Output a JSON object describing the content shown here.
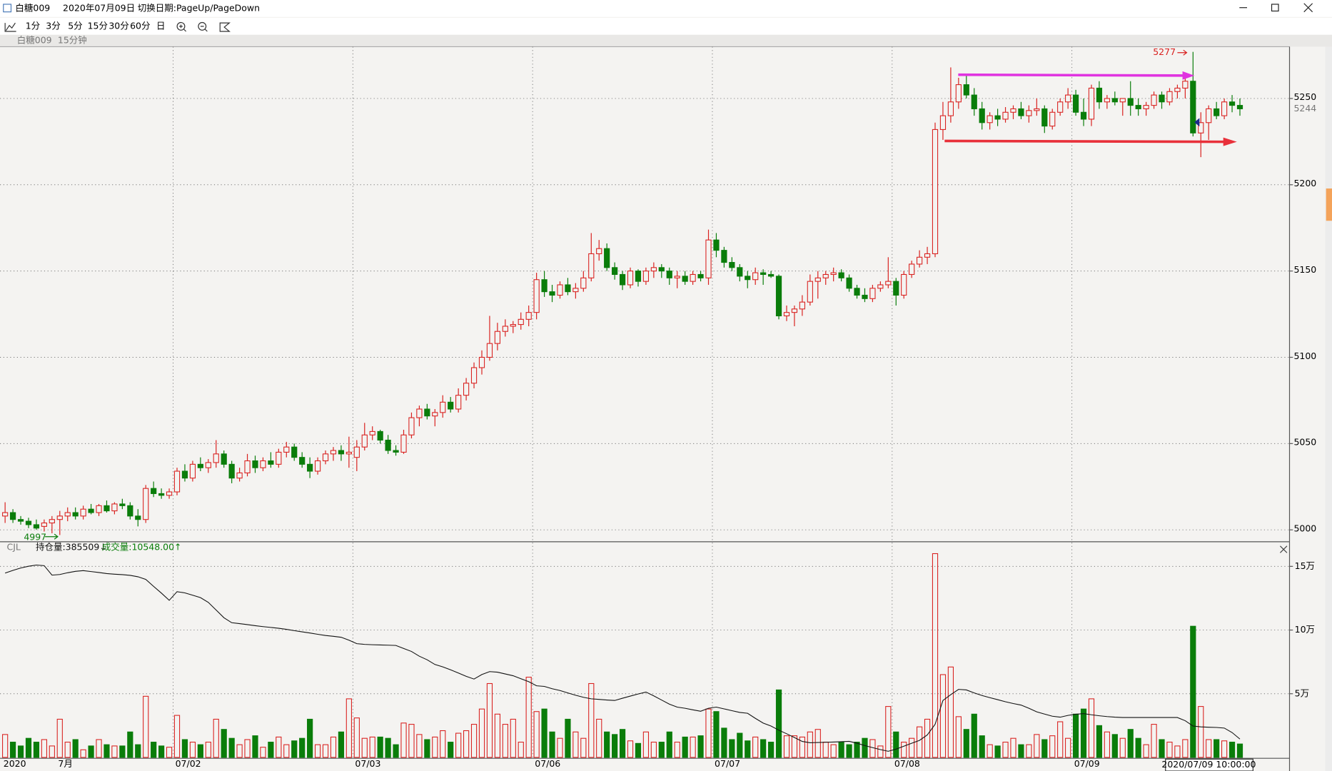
{
  "window": {
    "title": "白糖009",
    "date": "2020年07月09日",
    "hint": "切换日期:PageUp/PageDown",
    "periods": [
      "1分",
      "3分",
      "5分",
      "15分",
      "30分",
      "60分",
      "日"
    ],
    "instrument": "白糖009",
    "period": "15分钟"
  },
  "chart_data": {
    "type": "candlestick",
    "up_color": "#d9211f",
    "down_color": "#0a7d0a",
    "oi_color": "#111111",
    "ylim": [
      4993.6,
      5280
    ],
    "yticks": [
      5000,
      5050,
      5100,
      5150,
      5200,
      5250
    ],
    "grid": true,
    "last_price": 5244,
    "annotations": {
      "high": 5277,
      "low": 4997
    },
    "cursor_time": "2020/07/09 10:00:00",
    "indicator": "CJL",
    "indicator_labels": [
      "持仓量:385509↓",
      "成交量:10548.00↑"
    ],
    "volume_ylim": [
      0,
      162000
    ],
    "volume_ticks": [
      {
        "value": 50000,
        "label": "5万"
      },
      {
        "value": 100000,
        "label": "10万"
      },
      {
        "value": 150000,
        "label": "15万"
      }
    ],
    "y2lim": [
      370000,
      540000
    ],
    "categories": [
      "2020",
      null,
      null,
      null,
      null,
      null,
      null,
      "7月",
      null,
      null,
      null,
      null,
      null,
      null,
      null,
      null,
      null,
      null,
      null,
      null,
      null,
      null,
      "07/02",
      null,
      null,
      null,
      null,
      null,
      null,
      null,
      null,
      null,
      null,
      null,
      null,
      null,
      null,
      null,
      null,
      null,
      null,
      null,
      null,
      null,
      null,
      "07/03",
      null,
      null,
      null,
      null,
      null,
      null,
      null,
      null,
      null,
      null,
      null,
      null,
      null,
      null,
      null,
      null,
      null,
      null,
      null,
      null,
      null,
      null,
      "07/06",
      null,
      null,
      null,
      null,
      null,
      null,
      null,
      null,
      null,
      null,
      null,
      null,
      null,
      null,
      null,
      null,
      null,
      null,
      null,
      null,
      null,
      null,
      "07/07",
      null,
      null,
      null,
      null,
      null,
      null,
      null,
      null,
      null,
      null,
      null,
      null,
      null,
      null,
      null,
      null,
      null,
      null,
      null,
      null,
      null,
      null,
      "07/08",
      null,
      null,
      null,
      null,
      null,
      null,
      null,
      null,
      null,
      null,
      null,
      null,
      null,
      null,
      null,
      null,
      null,
      null,
      null,
      null,
      null,
      null,
      "07/09",
      null,
      null,
      null,
      null,
      null,
      null,
      null,
      null,
      null,
      null,
      null,
      null,
      null,
      null,
      null,
      null,
      null,
      null,
      null,
      null,
      null
    ],
    "candles": [
      [
        5008,
        5016,
        5004,
        5010
      ],
      [
        5010,
        5012,
        5004,
        5006
      ],
      [
        5006,
        5008,
        5003,
        5005
      ],
      [
        5005,
        5007,
        5001,
        5003
      ],
      [
        5003,
        5006,
        5000,
        5001
      ],
      [
        5002,
        5006,
        4999,
        5004
      ],
      [
        5004,
        5008,
        4998,
        5006
      ],
      [
        5006,
        5011,
        4997,
        5008
      ],
      [
        5008,
        5013,
        5005,
        5010
      ],
      [
        5010,
        5013,
        5006,
        5008
      ],
      [
        5008,
        5014,
        5006,
        5012
      ],
      [
        5012,
        5015,
        5009,
        5010
      ],
      [
        5010,
        5015,
        5008,
        5014
      ],
      [
        5014,
        5017,
        5010,
        5011
      ],
      [
        5011,
        5016,
        5009,
        5015
      ],
      [
        5015,
        5018,
        5012,
        5014
      ],
      [
        5014,
        5016,
        5006,
        5008
      ],
      [
        5008,
        5012,
        5002,
        5006
      ],
      [
        5006,
        5026,
        5004,
        5024
      ],
      [
        5024,
        5028,
        5019,
        5021
      ],
      [
        5021,
        5024,
        5018,
        5020
      ],
      [
        5020,
        5024,
        5018,
        5022
      ],
      [
        5022,
        5036,
        5020,
        5034
      ],
      [
        5034,
        5038,
        5028,
        5030
      ],
      [
        5030,
        5040,
        5028,
        5038
      ],
      [
        5038,
        5042,
        5034,
        5036
      ],
      [
        5036,
        5041,
        5033,
        5039
      ],
      [
        5039,
        5052,
        5036,
        5044
      ],
      [
        5044,
        5046,
        5036,
        5038
      ],
      [
        5038,
        5040,
        5027,
        5030
      ],
      [
        5030,
        5036,
        5028,
        5033
      ],
      [
        5033,
        5044,
        5031,
        5040
      ],
      [
        5040,
        5043,
        5033,
        5036
      ],
      [
        5036,
        5042,
        5034,
        5040
      ],
      [
        5040,
        5045,
        5036,
        5038
      ],
      [
        5038,
        5047,
        5036,
        5045
      ],
      [
        5045,
        5051,
        5042,
        5048
      ],
      [
        5048,
        5050,
        5040,
        5042
      ],
      [
        5042,
        5045,
        5036,
        5038
      ],
      [
        5038,
        5042,
        5030,
        5034
      ],
      [
        5034,
        5042,
        5032,
        5040
      ],
      [
        5040,
        5046,
        5038,
        5044
      ],
      [
        5044,
        5048,
        5040,
        5046
      ],
      [
        5046,
        5049,
        5040,
        5044
      ],
      [
        5044,
        5054,
        5036,
        5045
      ],
      [
        5042,
        5052,
        5034,
        5048
      ],
      [
        5048,
        5062,
        5046,
        5055
      ],
      [
        5055,
        5060,
        5052,
        5057
      ],
      [
        5057,
        5058,
        5050,
        5052
      ],
      [
        5052,
        5055,
        5044,
        5046
      ],
      [
        5046,
        5049,
        5043,
        5045
      ],
      [
        5045,
        5058,
        5044,
        5055
      ],
      [
        5055,
        5068,
        5053,
        5065
      ],
      [
        5065,
        5072,
        5060,
        5070
      ],
      [
        5070,
        5073,
        5064,
        5066
      ],
      [
        5066,
        5070,
        5060,
        5068
      ],
      [
        5068,
        5078,
        5065,
        5074
      ],
      [
        5074,
        5077,
        5068,
        5070
      ],
      [
        5070,
        5082,
        5068,
        5078
      ],
      [
        5078,
        5088,
        5075,
        5085
      ],
      [
        5085,
        5097,
        5082,
        5094
      ],
      [
        5094,
        5104,
        5090,
        5100
      ],
      [
        5100,
        5124,
        5098,
        5108
      ],
      [
        5108,
        5120,
        5104,
        5115
      ],
      [
        5115,
        5122,
        5112,
        5118
      ],
      [
        5118,
        5121,
        5114,
        5119
      ],
      [
        5119,
        5126,
        5116,
        5122
      ],
      [
        5122,
        5130,
        5118,
        5126
      ],
      [
        5126,
        5149,
        5122,
        5145
      ],
      [
        5145,
        5150,
        5135,
        5138
      ],
      [
        5138,
        5142,
        5132,
        5136
      ],
      [
        5136,
        5144,
        5134,
        5142
      ],
      [
        5142,
        5146,
        5136,
        5138
      ],
      [
        5138,
        5143,
        5134,
        5140
      ],
      [
        5140,
        5150,
        5138,
        5146
      ],
      [
        5146,
        5172,
        5144,
        5160
      ],
      [
        5160,
        5168,
        5156,
        5163
      ],
      [
        5163,
        5166,
        5150,
        5152
      ],
      [
        5152,
        5155,
        5145,
        5148
      ],
      [
        5148,
        5150,
        5139,
        5142
      ],
      [
        5142,
        5152,
        5140,
        5150
      ],
      [
        5150,
        5151,
        5141,
        5144
      ],
      [
        5144,
        5152,
        5142,
        5150
      ],
      [
        5150,
        5155,
        5146,
        5152
      ],
      [
        5152,
        5154,
        5146,
        5150
      ],
      [
        5150,
        5152,
        5142,
        5146
      ],
      [
        5146,
        5150,
        5140,
        5147
      ],
      [
        5147,
        5150,
        5142,
        5144
      ],
      [
        5144,
        5150,
        5142,
        5148
      ],
      [
        5148,
        5150,
        5144,
        5146
      ],
      [
        5146,
        5174,
        5142,
        5168
      ],
      [
        5168,
        5172,
        5158,
        5162
      ],
      [
        5162,
        5164,
        5152,
        5155
      ],
      [
        5155,
        5158,
        5150,
        5152
      ],
      [
        5152,
        5154,
        5144,
        5147
      ],
      [
        5147,
        5150,
        5140,
        5145
      ],
      [
        5145,
        5152,
        5142,
        5149
      ],
      [
        5149,
        5151,
        5142,
        5148
      ],
      [
        5148,
        5150,
        5146,
        5147
      ],
      [
        5147,
        5148,
        5122,
        5124
      ],
      [
        5124,
        5130,
        5121,
        5126
      ],
      [
        5126,
        5130,
        5118,
        5128
      ],
      [
        5128,
        5136,
        5124,
        5132
      ],
      [
        5132,
        5148,
        5130,
        5144
      ],
      [
        5144,
        5150,
        5134,
        5146
      ],
      [
        5146,
        5150,
        5142,
        5148
      ],
      [
        5148,
        5152,
        5144,
        5149
      ],
      [
        5149,
        5151,
        5144,
        5146
      ],
      [
        5146,
        5148,
        5138,
        5140
      ],
      [
        5140,
        5142,
        5134,
        5136
      ],
      [
        5136,
        5140,
        5132,
        5134
      ],
      [
        5134,
        5142,
        5132,
        5140
      ],
      [
        5140,
        5144,
        5138,
        5142
      ],
      [
        5142,
        5158,
        5140,
        5144
      ],
      [
        5144,
        5146,
        5130,
        5136
      ],
      [
        5136,
        5150,
        5134,
        5148
      ],
      [
        5148,
        5156,
        5146,
        5154
      ],
      [
        5154,
        5162,
        5152,
        5158
      ],
      [
        5158,
        5164,
        5154,
        5160
      ],
      [
        5160,
        5236,
        5158,
        5232
      ],
      [
        5232,
        5248,
        5226,
        5240
      ],
      [
        5240,
        5268,
        5236,
        5248
      ],
      [
        5248,
        5262,
        5244,
        5258
      ],
      [
        5258,
        5264,
        5250,
        5252
      ],
      [
        5252,
        5256,
        5240,
        5244
      ],
      [
        5244,
        5248,
        5232,
        5236
      ],
      [
        5236,
        5242,
        5232,
        5240
      ],
      [
        5240,
        5244,
        5234,
        5238
      ],
      [
        5238,
        5245,
        5236,
        5242
      ],
      [
        5242,
        5246,
        5238,
        5244
      ],
      [
        5244,
        5248,
        5238,
        5240
      ],
      [
        5240,
        5246,
        5236,
        5243
      ],
      [
        5243,
        5250,
        5240,
        5244
      ],
      [
        5244,
        5246,
        5230,
        5234
      ],
      [
        5234,
        5244,
        5232,
        5242
      ],
      [
        5242,
        5250,
        5240,
        5248
      ],
      [
        5248,
        5256,
        5244,
        5252
      ],
      [
        5252,
        5255,
        5240,
        5242
      ],
      [
        5242,
        5250,
        5234,
        5238
      ],
      [
        5238,
        5258,
        5234,
        5256
      ],
      [
        5256,
        5260,
        5244,
        5248
      ],
      [
        5248,
        5252,
        5244,
        5250
      ],
      [
        5250,
        5254,
        5246,
        5248
      ],
      [
        5248,
        5250,
        5240,
        5250
      ],
      [
        5250,
        5260,
        5240,
        5246
      ],
      [
        5246,
        5250,
        5240,
        5244
      ],
      [
        5244,
        5248,
        5240,
        5246
      ],
      [
        5246,
        5254,
        5244,
        5252
      ],
      [
        5252,
        5254,
        5244,
        5248
      ],
      [
        5248,
        5256,
        5246,
        5254
      ],
      [
        5254,
        5258,
        5250,
        5256
      ],
      [
        5256,
        5262,
        5250,
        5260
      ],
      [
        5260,
        5277,
        5228,
        5230
      ],
      [
        5230,
        5242,
        5216,
        5236
      ],
      [
        5236,
        5246,
        5226,
        5244
      ],
      [
        5244,
        5248,
        5238,
        5240
      ],
      [
        5240,
        5250,
        5238,
        5248
      ],
      [
        5248,
        5252,
        5242,
        5246
      ],
      [
        5246,
        5250,
        5240,
        5244
      ]
    ],
    "volume": [
      18000,
      12000,
      9000,
      15000,
      12000,
      14000,
      9000,
      30000,
      12000,
      14000,
      6000,
      9000,
      14000,
      10000,
      9000,
      9000,
      20000,
      10000,
      48000,
      12000,
      9000,
      8000,
      33000,
      14000,
      12000,
      10000,
      12000,
      30000,
      22000,
      15000,
      10000,
      14000,
      17000,
      8000,
      12000,
      16000,
      10000,
      13000,
      15000,
      30000,
      10000,
      10000,
      16000,
      20000,
      46000,
      31000,
      15000,
      16000,
      16000,
      15000,
      10000,
      27000,
      26000,
      18000,
      14000,
      16000,
      21000,
      12000,
      19000,
      21000,
      26000,
      38000,
      58000,
      34000,
      26000,
      30000,
      12000,
      63000,
      36000,
      38000,
      20000,
      15000,
      30000,
      20000,
      15000,
      58000,
      30000,
      20000,
      18000,
      22000,
      13000,
      11000,
      20000,
      12000,
      12000,
      20000,
      12000,
      16000,
      16000,
      17000,
      38000,
      36000,
      23000,
      14000,
      19000,
      13000,
      16000,
      14000,
      12000,
      53000,
      17000,
      17000,
      16000,
      20000,
      22000,
      12000,
      10000,
      12000,
      10000,
      12000,
      15000,
      14000,
      9000,
      40000,
      20000,
      12000,
      15000,
      24000,
      30000,
      160000,
      65000,
      71000,
      32000,
      22000,
      34000,
      17000,
      10000,
      9000,
      12000,
      15000,
      10000,
      10000,
      18000,
      14000,
      17000,
      28000,
      15000,
      34000,
      38000,
      46000,
      25000,
      20000,
      18000,
      15000,
      22000,
      15000,
      10000,
      26000,
      14000,
      12000,
      9000,
      14000,
      103000,
      40000,
      14000,
      14000,
      13000,
      12000,
      10548
    ],
    "open_interest": [
      525700,
      528000,
      530000,
      531500,
      532500,
      532000,
      524000,
      524500,
      526000,
      527200,
      527800,
      527000,
      526200,
      525300,
      524800,
      524400,
      523800,
      522600,
      520400,
      514500,
      508800,
      502700,
      510000,
      509000,
      507000,
      505000,
      501000,
      494500,
      488000,
      483800,
      483000,
      482200,
      481300,
      480500,
      479800,
      479100,
      478200,
      477100,
      476100,
      475100,
      474000,
      473000,
      472300,
      471500,
      469000,
      466100,
      465500,
      465200,
      465000,
      464800,
      464600,
      462000,
      459500,
      455500,
      452500,
      448500,
      446500,
      444000,
      441300,
      438500,
      436200,
      440000,
      442500,
      442000,
      440500,
      439000,
      436500,
      434000,
      430500,
      430000,
      428000,
      426500,
      424500,
      422500,
      420800,
      419500,
      419000,
      418500,
      418100,
      420000,
      421800,
      423600,
      425200,
      422000,
      418500,
      415000,
      412500,
      411500,
      410200,
      409000,
      411500,
      412500,
      411000,
      409500,
      408000,
      407300,
      403000,
      399000,
      396500,
      393000,
      390000,
      386800,
      383500,
      382400,
      382600,
      382800,
      383000,
      383300,
      383600,
      382000,
      380000,
      378300,
      376600,
      375200,
      377000,
      379500,
      382000,
      384400,
      389000,
      398000,
      418100,
      423000,
      427500,
      427000,
      424500,
      422300,
      420500,
      418800,
      417000,
      415500,
      414200,
      411500,
      408500,
      406600,
      404800,
      404000,
      405500,
      406500,
      407000,
      406000,
      405200,
      404500,
      404000,
      403700,
      403700,
      403700,
      403700,
      403700,
      403700,
      403700,
      403700,
      401000,
      396500,
      395800,
      395500,
      395300,
      394800,
      391000,
      385509
    ]
  }
}
